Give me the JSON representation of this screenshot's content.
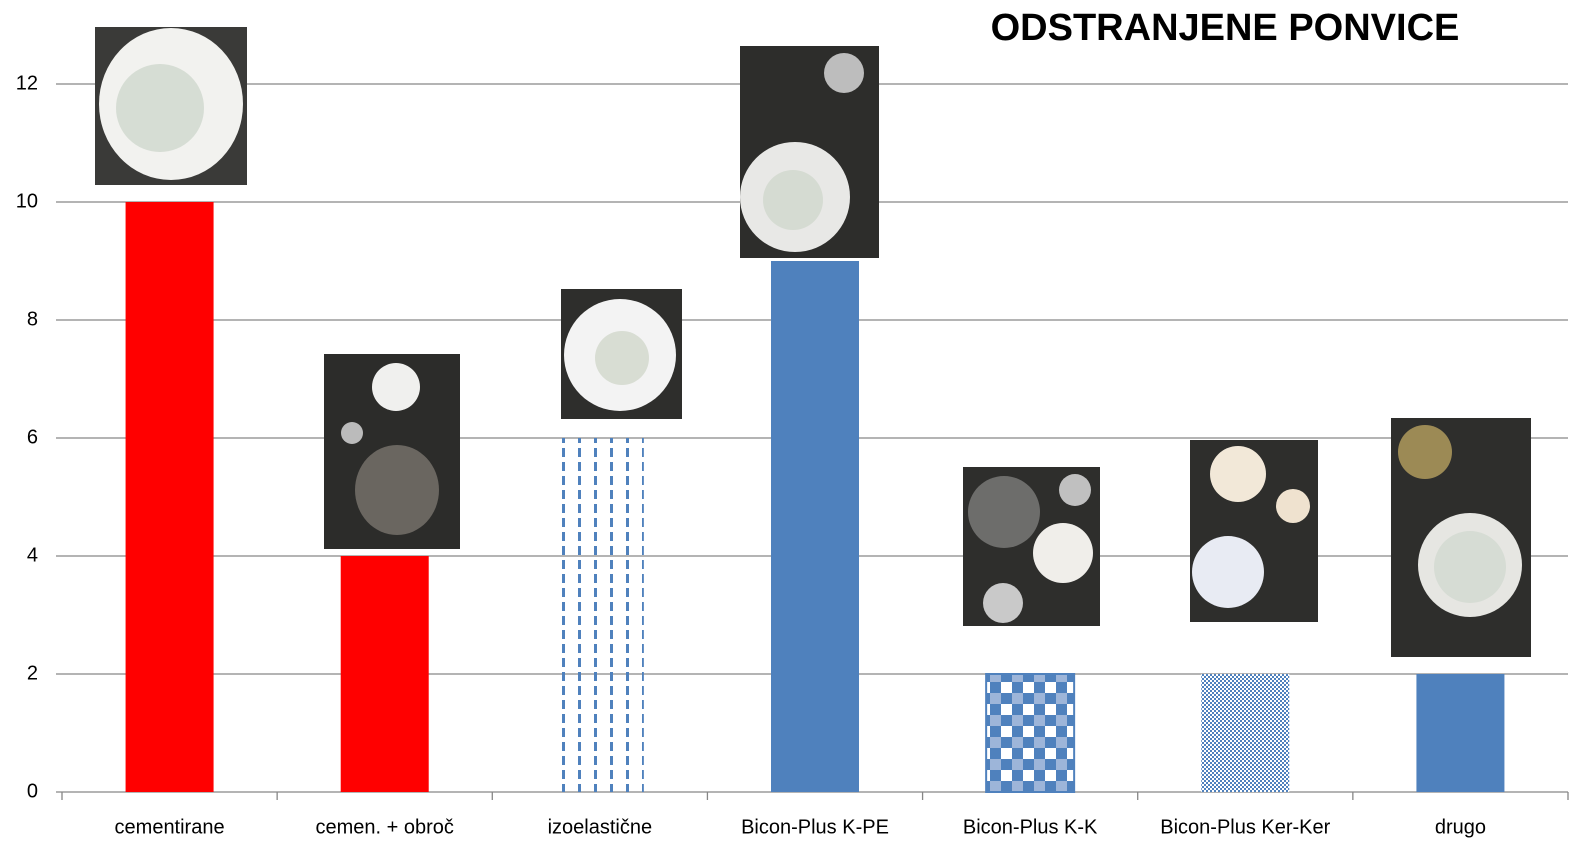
{
  "chart_data": {
    "type": "bar",
    "title": "ODSTRANJENE PONVICE",
    "categories": [
      "cementirane",
      "cemen. + obroč",
      "izoelastične",
      "Bicon-Plus K-PE",
      "Bicon-Plus K-K",
      "Bicon-Plus Ker-Ker",
      "drugo"
    ],
    "values": [
      10,
      4,
      6,
      9,
      2,
      2,
      2
    ],
    "colors": [
      "#ff0000",
      "#ff0000",
      "#4f81bd",
      "#4f81bd",
      "#4f81bd",
      "#4f81bd",
      "#4f81bd"
    ],
    "ylim": [
      0,
      12
    ],
    "yticks": [
      0,
      2,
      4,
      6,
      8,
      10,
      12
    ],
    "grid": true
  }
}
